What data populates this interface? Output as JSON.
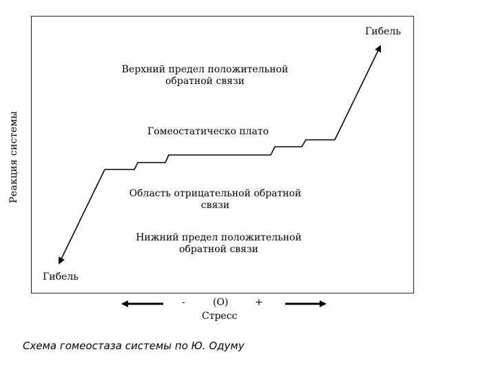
{
  "diagram": {
    "y_axis_label": "Реакция системы",
    "death_top": "Гибель",
    "death_bottom": "Гибель",
    "upper_limit": [
      "Верхний предел положительной",
      "обратной связи"
    ],
    "plateau": "Гомеостатическо плато",
    "negative_region": [
      "Область отрицательной обратной",
      "связи"
    ],
    "lower_limit": [
      "Нижний предел положительной",
      "обратной связи"
    ],
    "stress_minus": "-",
    "stress_zero": "(O)",
    "stress_plus": "+",
    "stress_label": "Стресс"
  },
  "caption": "Схема гомеостаза системы по Ю. Одуму"
}
